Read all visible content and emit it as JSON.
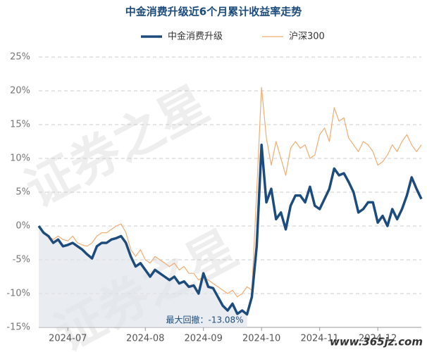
{
  "chart_data": {
    "type": "line",
    "title": "中金消费升级近6个月累计收益率走势",
    "watermark": "证券之星",
    "site_mark": "www.365jz.com",
    "annotation": "最大回撤：-13.08%",
    "categories": [
      null,
      null,
      null,
      null,
      null,
      null,
      "2024-07",
      null,
      null,
      null,
      null,
      null,
      null,
      null,
      null,
      null,
      null,
      null,
      null,
      null,
      null,
      null,
      "2024-08",
      null,
      null,
      null,
      null,
      null,
      null,
      null,
      null,
      null,
      null,
      null,
      "2024-09",
      null,
      null,
      null,
      null,
      null,
      null,
      null,
      null,
      null,
      null,
      null,
      "2024-10",
      null,
      null,
      null,
      null,
      null,
      null,
      null,
      null,
      null,
      null,
      null,
      "2024-11",
      null,
      null,
      null,
      null,
      null,
      null,
      null,
      null,
      null,
      null,
      null,
      "2024-12",
      null,
      null,
      null,
      null,
      null,
      null,
      null,
      null,
      null
    ],
    "series": [
      {
        "name": "中金消费升级",
        "color": "#1d4c7c",
        "width": 3.5,
        "values": [
          0,
          -1,
          -1.5,
          -2.5,
          -2,
          -3,
          -2.8,
          -2.5,
          -3,
          -3.5,
          -4.2,
          -4.8,
          -3,
          -2.5,
          -2.5,
          -2,
          -1.8,
          -1.5,
          -2.5,
          -4.5,
          -6,
          -5.5,
          -6.5,
          -7.5,
          -6.5,
          -7,
          -7.5,
          -8,
          -7.5,
          -8.5,
          -8.2,
          -9,
          -8.8,
          -10,
          -7,
          -9,
          -9.2,
          -10.5,
          -11.8,
          -12.5,
          -11.5,
          -13,
          -12.5,
          -13.08,
          -10.5,
          -3,
          12,
          3.5,
          5.5,
          1,
          2,
          -0.5,
          3,
          4.5,
          4.5,
          3.5,
          5.8,
          3,
          2.5,
          4,
          5.5,
          8.5,
          7.5,
          7.8,
          6.5,
          5,
          2,
          2.5,
          3.5,
          3.5,
          0.5,
          1.5,
          0,
          2.5,
          1,
          2.5,
          4.5,
          7.2,
          5.5,
          4
        ]
      },
      {
        "name": "沪深300",
        "color": "#f2ac72",
        "width": 1.2,
        "values": [
          0,
          -0.8,
          -1.5,
          -2,
          -1.5,
          -2,
          -2.2,
          -1.5,
          -2.5,
          -2.8,
          -3,
          -2.5,
          -1.5,
          -1,
          -1,
          -0.5,
          0,
          0.3,
          -1,
          -3.5,
          -4.5,
          -3.5,
          -5,
          -5.5,
          -4.5,
          -5,
          -5.5,
          -6,
          -5.5,
          -6.5,
          -6,
          -7,
          -7,
          -8,
          -7.5,
          -8,
          -8.5,
          -9,
          -9.5,
          -10,
          -9.5,
          -10.5,
          -10,
          -9,
          -9.5,
          5,
          20.5,
          13,
          9,
          12.5,
          10,
          7.5,
          11.5,
          12.5,
          11.5,
          12,
          10,
          10.5,
          13.5,
          14.5,
          12.5,
          17.5,
          15.5,
          16,
          13,
          12,
          11,
          12.5,
          12,
          11,
          9,
          9.5,
          10.5,
          12,
          11,
          12.5,
          13.5,
          12,
          11,
          12
        ]
      }
    ],
    "ylim": [
      -15,
      25
    ],
    "yticks": [
      {
        "value": -15,
        "label": "-15%"
      },
      {
        "value": -10,
        "label": "-10%"
      },
      {
        "value": -5,
        "label": "-5%"
      },
      {
        "value": 0,
        "label": "0%"
      },
      {
        "value": 5,
        "label": "5%"
      },
      {
        "value": 10,
        "label": "10%"
      },
      {
        "value": 15,
        "label": "15%"
      },
      {
        "value": 20,
        "label": "20%"
      },
      {
        "value": 25,
        "label": "25%"
      }
    ],
    "grid": true
  }
}
